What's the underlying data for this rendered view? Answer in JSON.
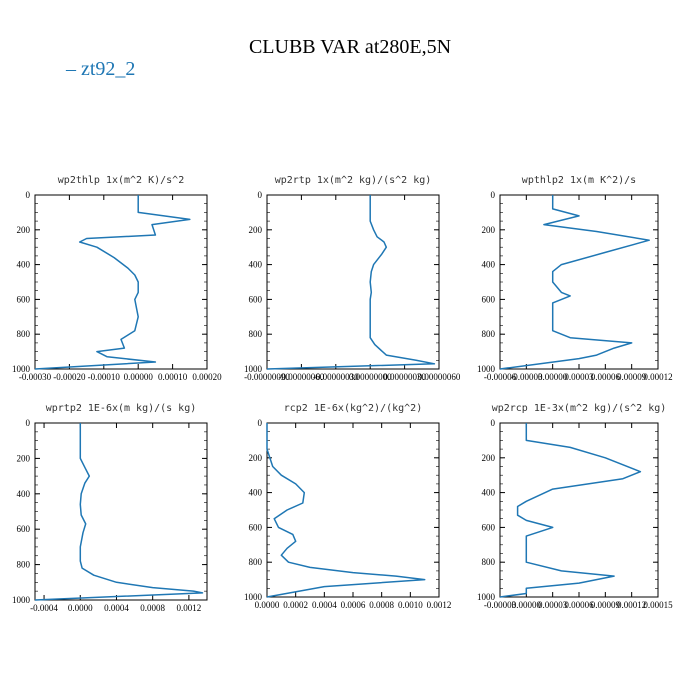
{
  "title": "CLUBB VAR at280E,5N",
  "legend": [
    {
      "name": "zt92_2",
      "color": "#1f77b4"
    }
  ],
  "chart_data": [
    {
      "type": "line",
      "title": "wp2thlp 1x(m^2 K)/s^2",
      "ylim": [
        0,
        1000
      ],
      "y_inverted": true,
      "yticks": [
        0,
        200,
        400,
        600,
        800,
        1000
      ],
      "xlim": [
        -0.0003,
        0.0002
      ],
      "xtick_labels": [
        "-0.00030",
        "-0.00020",
        "-0.00010",
        "0.00000",
        "0.00010",
        "0.00020"
      ],
      "series": [
        {
          "color": "#1f77b4",
          "x": [
            0.0,
            0.0,
            0.00015,
            4e-05,
            5e-05,
            -0.00015,
            -0.00017,
            -0.00012,
            -7e-05,
            -3e-05,
            -1e-05,
            0.0,
            0.0,
            -1e-05,
            0.0,
            -1e-05,
            -5e-05,
            -4e-05,
            -0.00012,
            -9e-05,
            5e-05,
            -0.0003
          ],
          "y": [
            0,
            100,
            140,
            170,
            230,
            250,
            270,
            300,
            360,
            420,
            460,
            500,
            560,
            600,
            700,
            780,
            830,
            880,
            900,
            930,
            960,
            1000
          ]
        }
      ]
    },
    {
      "type": "line",
      "title": "wp2rtp 1x(m^2 kg)/(s^2 kg)",
      "ylim": [
        0,
        1000
      ],
      "y_inverted": true,
      "yticks": [
        0,
        200,
        400,
        600,
        800,
        1000
      ],
      "xlim": [
        -9e-07,
        6e-07
      ],
      "xtick_labels": [
        "-0.00000090",
        "-0.00000060",
        "-0.00000030",
        "0.00000000",
        "0.00000030",
        "0.00000060"
      ],
      "series": [
        {
          "color": "#1f77b4",
          "x": [
            0.0,
            0.0,
            3e-08,
            6e-08,
            1.2e-07,
            1.4e-07,
            1e-07,
            3e-08,
            1e-08,
            0.0,
            1e-08,
            0.0,
            0.0,
            0.0,
            0.0,
            4e-08,
            1.4e-07,
            4e-07,
            5.6e-07,
            -9e-07
          ],
          "y": [
            0,
            150,
            200,
            240,
            270,
            300,
            340,
            400,
            440,
            500,
            560,
            600,
            700,
            800,
            820,
            860,
            920,
            950,
            970,
            1000
          ]
        }
      ]
    },
    {
      "type": "line",
      "title": "wpthlp2 1x(m K^2)/s",
      "ylim": [
        0,
        1000
      ],
      "y_inverted": true,
      "yticks": [
        0,
        200,
        400,
        600,
        800,
        1000
      ],
      "xlim": [
        -6e-05,
        0.00012
      ],
      "xtick_labels": [
        "-0.00006",
        "-0.00003",
        "0.00000",
        "0.00003",
        "0.00006",
        "0.00009",
        "0.00012"
      ],
      "series": [
        {
          "color": "#1f77b4",
          "x": [
            0.0,
            0.0,
            3e-05,
            -1e-05,
            5e-05,
            0.00011,
            6e-05,
            1e-05,
            0.0,
            0.0,
            1e-05,
            2e-05,
            0.0,
            0.0,
            0.0,
            2e-05,
            9e-05,
            7e-05,
            5e-05,
            3e-05,
            -6e-05
          ],
          "y": [
            0,
            80,
            120,
            170,
            210,
            260,
            330,
            400,
            440,
            500,
            560,
            580,
            620,
            700,
            780,
            820,
            850,
            880,
            920,
            940,
            1000
          ]
        }
      ]
    },
    {
      "type": "line",
      "title": "wprtp2 1E-6x(m kg)/(s kg)",
      "ylim": [
        0,
        1000
      ],
      "y_inverted": true,
      "yticks": [
        0,
        200,
        400,
        600,
        800,
        1000
      ],
      "xlim": [
        -0.0005,
        0.0014
      ],
      "xtick_labels": [
        "-0.0004",
        "0.0000",
        "0.0004",
        "0.0008",
        "0.0012"
      ],
      "xtick_values": [
        -0.0004,
        0.0,
        0.0004,
        0.0008,
        0.0012
      ],
      "series": [
        {
          "color": "#1f77b4",
          "x": [
            0.0,
            0.0,
            5e-05,
            0.0001,
            5e-05,
            1e-05,
            0.0,
            1e-05,
            6e-05,
            3e-05,
            0.0,
            0.0,
            2e-05,
            0.00015,
            0.0004,
            0.0008,
            0.00125,
            0.00135,
            -0.0005
          ],
          "y": [
            0,
            200,
            250,
            300,
            340,
            400,
            460,
            520,
            570,
            620,
            700,
            780,
            820,
            860,
            900,
            930,
            950,
            960,
            1000
          ]
        }
      ]
    },
    {
      "type": "line",
      "title": "rcp2 1E-6x(kg^2)/(kg^2)",
      "ylim": [
        0,
        1000
      ],
      "y_inverted": true,
      "yticks": [
        0,
        200,
        400,
        600,
        800,
        1000
      ],
      "xlim": [
        0.0,
        0.0012
      ],
      "xtick_labels": [
        "0.0000",
        "0.0002",
        "0.0004",
        "0.0006",
        "0.0008",
        "0.0010",
        "0.0012"
      ],
      "series": [
        {
          "color": "#1f77b4",
          "x": [
            0.0,
            0.0,
            4e-05,
            0.0001,
            0.0002,
            0.00026,
            0.00025,
            0.00014,
            5e-05,
            8e-05,
            0.00018,
            0.0002,
            0.00014,
            0.0001,
            0.00015,
            0.0003,
            0.0006,
            0.0009,
            0.0011,
            0.0004,
            0.0
          ],
          "y": [
            0,
            150,
            250,
            300,
            350,
            400,
            460,
            500,
            550,
            600,
            640,
            680,
            720,
            760,
            800,
            830,
            860,
            880,
            900,
            940,
            1000
          ]
        }
      ]
    },
    {
      "type": "line",
      "title": "wp2rcp 1E-3x(m^2 kg)/(s^2 kg)",
      "ylim": [
        0,
        1000
      ],
      "y_inverted": true,
      "yticks": [
        0,
        200,
        400,
        600,
        800,
        1000
      ],
      "xlim": [
        -3e-05,
        0.00015
      ],
      "xtick_labels": [
        "-0.00003",
        "0.00000",
        "0.00003",
        "0.00006",
        "0.00009",
        "0.00012",
        "0.00015"
      ],
      "series": [
        {
          "color": "#1f77b4",
          "x": [
            0.0,
            0.0,
            5e-05,
            9e-05,
            0.00013,
            0.00011,
            3e-05,
            0.0,
            -1e-05,
            -1e-05,
            0.0,
            3e-05,
            0.0,
            0.0,
            0.0,
            4e-05,
            0.0001,
            6e-05,
            0.0,
            0.0,
            -3e-05
          ],
          "y": [
            0,
            100,
            140,
            200,
            280,
            320,
            380,
            450,
            480,
            530,
            560,
            600,
            650,
            700,
            800,
            850,
            880,
            920,
            950,
            980,
            1000
          ]
        }
      ]
    }
  ]
}
